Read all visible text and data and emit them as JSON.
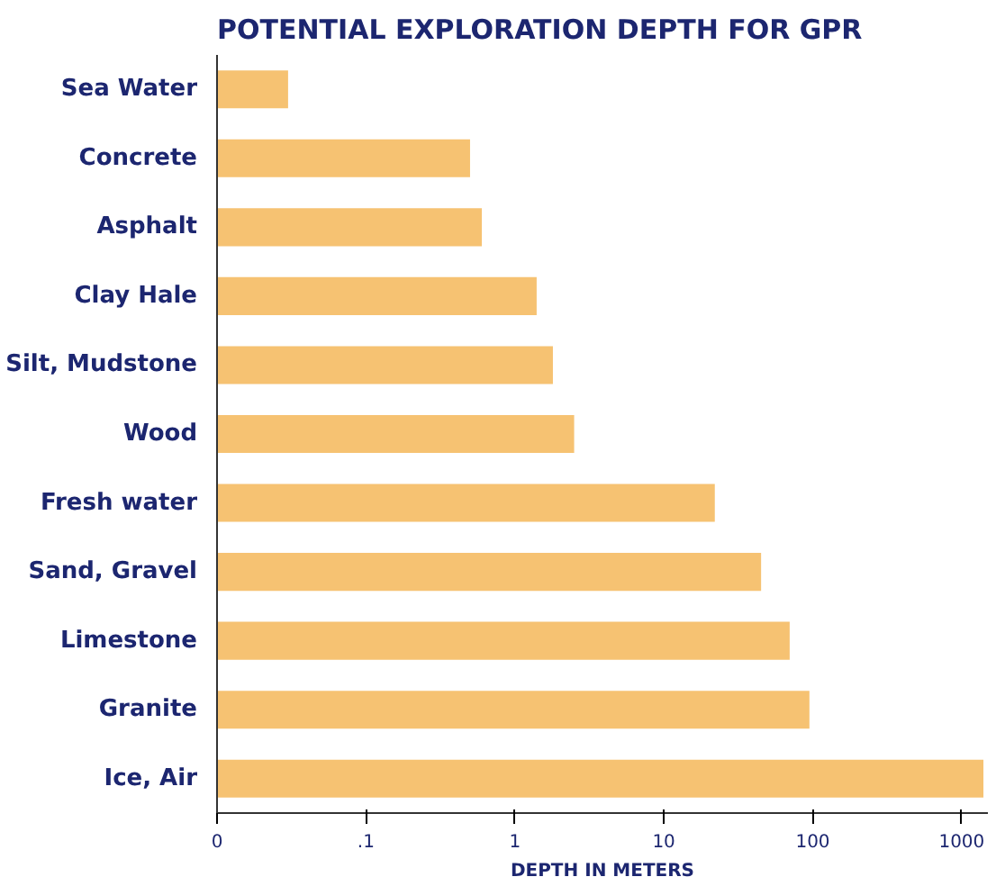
{
  "chart_data": {
    "type": "bar",
    "orientation": "horizontal",
    "title": "POTENTIAL EXPLORATION DEPTH FOR GPR",
    "xlabel": "DEPTH IN METERS",
    "categories": [
      "Sea Water",
      "Concrete",
      "Asphalt",
      "Clay Hale",
      "Silt, Mudstone",
      "Wood",
      "Fresh water",
      "Sand, Gravel",
      "Limestone",
      "Granite",
      "Ice, Air"
    ],
    "values": [
      0.03,
      0.5,
      0.6,
      1.4,
      1.8,
      2.5,
      22,
      45,
      70,
      95,
      1400
    ],
    "color": "#f6c272",
    "log": "x",
    "xlim": [
      0.01,
      1500
    ],
    "xticks": [
      {
        "value": 0.01,
        "label": "0"
      },
      {
        "value": 0.1,
        "label": ".1"
      },
      1,
      10,
      100,
      1000
    ],
    "grid": false
  }
}
